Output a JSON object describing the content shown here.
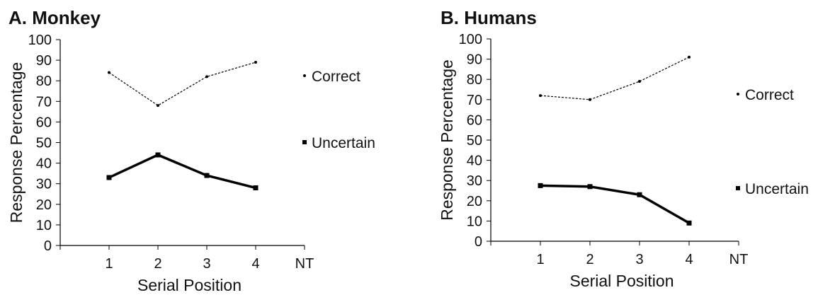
{
  "chart_data": [
    {
      "type": "line",
      "title": "A. Monkey",
      "x_label": "Serial Position",
      "y_label": "Response Percentage",
      "categories": [
        null,
        "1",
        "2",
        "3",
        "4",
        "NT"
      ],
      "series": [
        {
          "name": "Correct",
          "color": "#000000",
          "values": [
            null,
            84,
            68,
            82,
            89,
            null
          ]
        },
        {
          "name": "Uncertain",
          "color": "#000000",
          "values": [
            null,
            33,
            44,
            34,
            28,
            null
          ]
        }
      ],
      "ylim": [
        0,
        100
      ],
      "yticks": [
        0,
        10,
        20,
        30,
        40,
        50,
        60,
        70,
        80,
        90,
        100
      ]
    },
    {
      "type": "line",
      "title": "B. Humans",
      "x_label": "Serial Position",
      "y_label": "Response Percentage",
      "categories": [
        null,
        "1",
        "2",
        "3",
        "4",
        "NT"
      ],
      "series": [
        {
          "name": "Correct",
          "color": "#000000",
          "values": [
            null,
            72,
            70,
            79,
            91,
            null
          ]
        },
        {
          "name": "Uncertain",
          "color": "#000000",
          "values": [
            null,
            27.5,
            27,
            23,
            9,
            null
          ]
        }
      ],
      "ylim": [
        0,
        100
      ],
      "yticks": [
        0,
        10,
        20,
        30,
        40,
        50,
        60,
        70,
        80,
        90,
        100
      ]
    }
  ]
}
